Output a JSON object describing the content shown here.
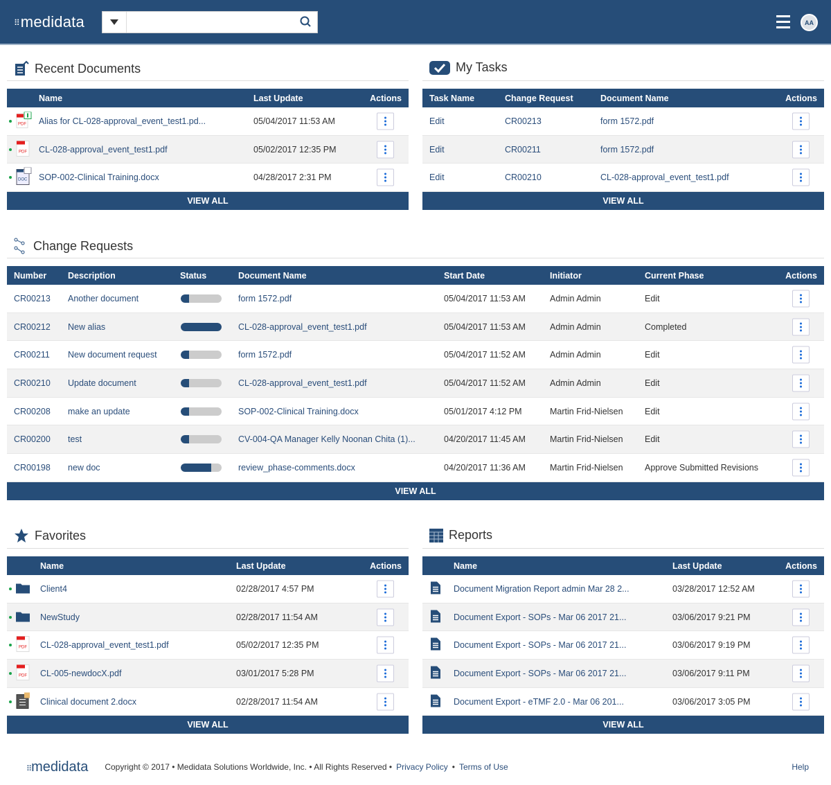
{
  "header": {
    "logo": "medidata",
    "search_placeholder": "",
    "avatar": "AA"
  },
  "recent_documents": {
    "title": "Recent Documents",
    "columns": [
      "Name",
      "Last Update",
      "Actions"
    ],
    "view_all": "VIEW ALL",
    "rows": [
      {
        "type": "pdf-alias",
        "name": "Alias for CL-028-approval_event_test1.pd...",
        "updated": "05/04/2017 11:53 AM"
      },
      {
        "type": "pdf",
        "name": "CL-028-approval_event_test1.pdf",
        "updated": "05/02/2017 12:35 PM"
      },
      {
        "type": "doc-cr",
        "name": "SOP-002-Clinical Training.docx",
        "updated": "04/28/2017 2:31 PM"
      }
    ]
  },
  "my_tasks": {
    "title": "My Tasks",
    "columns": [
      "Task Name",
      "Change Request",
      "Document Name",
      "Actions"
    ],
    "view_all": "VIEW ALL",
    "rows": [
      {
        "task": "Edit",
        "cr": "CR00213",
        "doc": "form 1572.pdf"
      },
      {
        "task": "Edit",
        "cr": "CR00211",
        "doc": "form 1572.pdf"
      },
      {
        "task": "Edit",
        "cr": "CR00210",
        "doc": "CL-028-approval_event_test1.pdf"
      }
    ]
  },
  "change_requests": {
    "title": "Change Requests",
    "columns": [
      "Number",
      "Description",
      "Status",
      "Document Name",
      "Start Date",
      "Initiator",
      "Current Phase",
      "Actions"
    ],
    "view_all": "VIEW ALL",
    "rows": [
      {
        "number": "CR00213",
        "description": "Another document",
        "progress": 20,
        "doc": "form 1572.pdf",
        "start": "05/04/2017 11:53 AM",
        "initiator": "Admin Admin",
        "phase": "Edit"
      },
      {
        "number": "CR00212",
        "description": "New alias",
        "progress": 100,
        "doc": "CL-028-approval_event_test1.pdf",
        "start": "05/04/2017 11:53 AM",
        "initiator": "Admin Admin",
        "phase": "Completed"
      },
      {
        "number": "CR00211",
        "description": "New document request",
        "progress": 20,
        "doc": "form 1572.pdf",
        "start": "05/04/2017 11:52 AM",
        "initiator": "Admin Admin",
        "phase": "Edit"
      },
      {
        "number": "CR00210",
        "description": "Update document",
        "progress": 20,
        "doc": "CL-028-approval_event_test1.pdf",
        "start": "05/04/2017 11:52 AM",
        "initiator": "Admin Admin",
        "phase": "Edit"
      },
      {
        "number": "CR00208",
        "description": "make an update",
        "progress": 20,
        "doc": "SOP-002-Clinical Training.docx",
        "start": "05/01/2017 4:12 PM",
        "initiator": "Martin Frid-Nielsen",
        "phase": "Edit"
      },
      {
        "number": "CR00200",
        "description": "test",
        "progress": 20,
        "doc": "CV-004-QA Manager Kelly Noonan Chita (1)...",
        "start": "04/20/2017 11:45 AM",
        "initiator": "Martin Frid-Nielsen",
        "phase": "Edit"
      },
      {
        "number": "CR00198",
        "description": "new doc",
        "progress": 75,
        "doc": "review_phase-comments.docx",
        "start": "04/20/2017 11:36 AM",
        "initiator": "Martin Frid-Nielsen",
        "phase": "Approve Submitted Revisions"
      }
    ]
  },
  "favorites": {
    "title": "Favorites",
    "columns": [
      "Name",
      "Last Update",
      "Actions"
    ],
    "view_all": "VIEW ALL",
    "rows": [
      {
        "type": "folder",
        "name": "Client4",
        "updated": "02/28/2017 4:57 PM"
      },
      {
        "type": "folder",
        "name": "NewStudy",
        "updated": "02/28/2017 11:54 AM"
      },
      {
        "type": "pdf",
        "name": "CL-028-approval_event_test1.pdf",
        "updated": "05/02/2017 12:35 PM"
      },
      {
        "type": "pdf",
        "name": "CL-005-newdocX.pdf",
        "updated": "03/01/2017 5:28 PM"
      },
      {
        "type": "doc",
        "name": "Clinical document 2.docx",
        "updated": "02/28/2017 11:54 AM"
      }
    ]
  },
  "reports": {
    "title": "Reports",
    "columns": [
      "Name",
      "Last Update",
      "Actions"
    ],
    "view_all": "VIEW ALL",
    "rows": [
      {
        "name": "Document Migration Report admin Mar 28 2...",
        "updated": "03/28/2017 12:52 AM"
      },
      {
        "name": "Document Export - SOPs - Mar 06 2017 21...",
        "updated": "03/06/2017 9:21 PM"
      },
      {
        "name": "Document Export - SOPs - Mar 06 2017 21...",
        "updated": "03/06/2017 9:19 PM"
      },
      {
        "name": "Document Export - SOPs - Mar 06 2017 21...",
        "updated": "03/06/2017 9:11 PM"
      },
      {
        "name": "Document Export - eTMF 2.0 - Mar 06 201...",
        "updated": "03/06/2017 3:05 PM"
      }
    ]
  },
  "footer": {
    "logo": "medidata",
    "copyright": "Copyright © 2017 • Medidata Solutions Worldwide, Inc. • All Rights Reserved •",
    "privacy": "Privacy Policy",
    "sep": "•",
    "terms": "Terms of Use",
    "help": "Help"
  },
  "colors": {
    "brand": "#264d78",
    "link": "#2a4d7a",
    "action_dots": "#1a6ad8",
    "online_dot": "#1aa34a"
  }
}
